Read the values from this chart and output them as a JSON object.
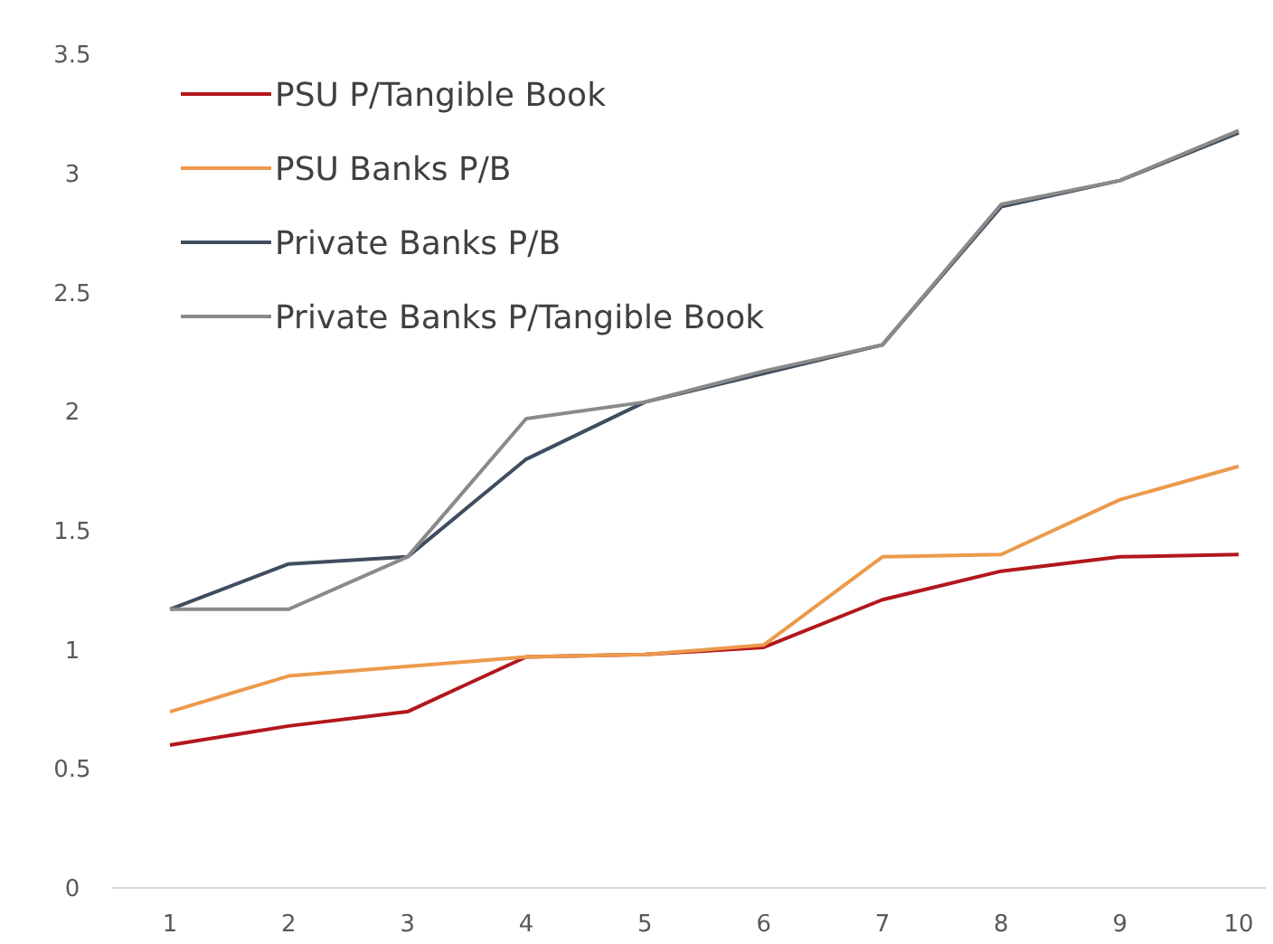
{
  "chart_data": {
    "type": "line",
    "categories": [
      "1",
      "2",
      "3",
      "4",
      "5",
      "6",
      "7",
      "8",
      "9",
      "10"
    ],
    "series": [
      {
        "name": "PSU P/Tangible Book",
        "color": "#b2171c",
        "values": [
          0.6,
          0.68,
          0.74,
          0.97,
          0.98,
          1.01,
          1.21,
          1.33,
          1.39,
          1.4
        ]
      },
      {
        "name": "PSU Banks P/B",
        "color": "#ec9a4c",
        "values": [
          0.74,
          0.89,
          0.93,
          0.97,
          0.98,
          1.02,
          1.39,
          1.4,
          1.63,
          1.77
        ]
      },
      {
        "name": "Private Banks P/B",
        "color": "#3f4d5e",
        "values": [
          1.17,
          1.36,
          1.39,
          1.8,
          2.04,
          2.16,
          2.28,
          2.86,
          2.97,
          3.17
        ]
      },
      {
        "name": "Private Banks P/Tangible Book",
        "color": "#8a8a8a",
        "values": [
          1.17,
          1.17,
          1.39,
          1.97,
          2.04,
          2.17,
          2.28,
          2.87,
          2.97,
          3.18
        ]
      }
    ],
    "ylim": [
      0,
      3.5
    ],
    "yticks": [
      0,
      0.5,
      1,
      1.5,
      2,
      2.5,
      3,
      3.5
    ],
    "grid": false,
    "legend": "top left",
    "marker": "none",
    "line_style": "solid"
  }
}
